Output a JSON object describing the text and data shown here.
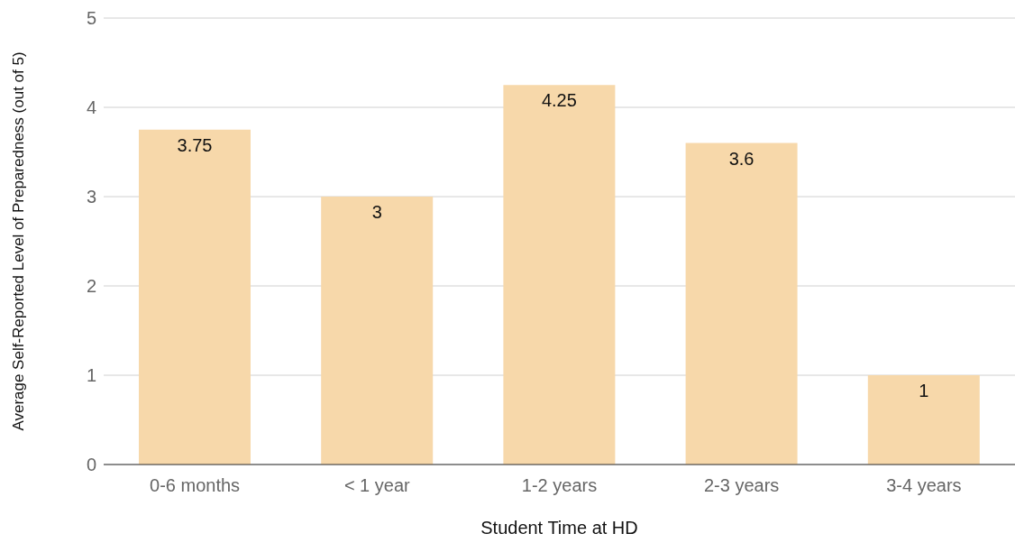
{
  "chart_data": {
    "type": "bar",
    "xlabel": "Student Time at HD",
    "ylabel": "Average Self-Reported Level of Preparedness (out of 5)",
    "categories": [
      "0-6 months",
      "< 1 year",
      "1-2 years",
      "2-3 years",
      "3-4 years"
    ],
    "values": [
      3.75,
      3,
      4.25,
      3.6,
      1
    ],
    "color": "#f7d8aa",
    "ylim": [
      0,
      5
    ],
    "yticks": [
      0,
      1,
      2,
      3,
      4,
      5
    ],
    "grid": "y",
    "data_labels": true
  }
}
